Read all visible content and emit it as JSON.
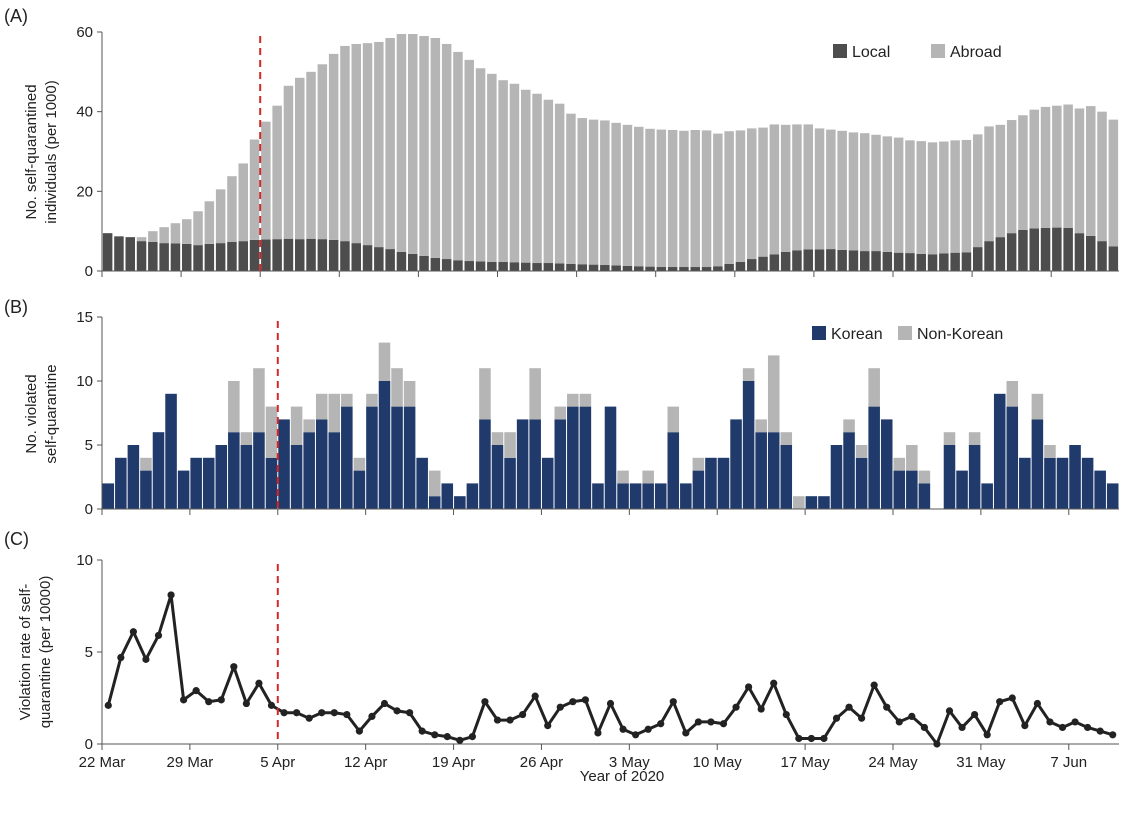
{
  "figure": {
    "xlabel": "Year of 2020",
    "date_labels": [
      "22 Mar",
      "29 Mar",
      "5 Apr",
      "12 Apr",
      "19 Apr",
      "26 Apr",
      "3 May",
      "10 May",
      "17 May",
      "24 May",
      "31 May",
      "7 Jun"
    ],
    "intervention_date": "5 Apr",
    "intervention_color": "#d62728"
  },
  "chart_data": [
    {
      "panel": "(A)",
      "type": "bar",
      "stacked": true,
      "ylabel_line1": "No. self-quarantined",
      "ylabel_line2": "individuals (per 1000)",
      "ylim": [
        0,
        60
      ],
      "yticks": [
        0,
        20,
        40,
        60
      ],
      "legend_placement": "top-right",
      "series": [
        {
          "name": "Local",
          "color": "#4d4d4d",
          "values": [
            9.5,
            8.7,
            8.5,
            7.5,
            7.3,
            7.0,
            6.9,
            6.8,
            6.5,
            6.8,
            7.0,
            7.3,
            7.5,
            7.8,
            7.9,
            8.0,
            8.1,
            8.0,
            8.1,
            8.0,
            7.8,
            7.5,
            7.0,
            6.5,
            6.0,
            5.5,
            4.8,
            4.3,
            3.8,
            3.3,
            3.0,
            2.7,
            2.5,
            2.4,
            2.3,
            2.3,
            2.2,
            2.1,
            2.0,
            2.0,
            1.9,
            1.8,
            1.7,
            1.6,
            1.5,
            1.4,
            1.3,
            1.2,
            1.1,
            1.0,
            1.0,
            1.0,
            1.0,
            1.0,
            1.2,
            1.8,
            2.3,
            3.0,
            3.6,
            4.2,
            4.8,
            5.2,
            5.4,
            5.4,
            5.5,
            5.3,
            5.2,
            5.0,
            5.0,
            4.8,
            4.6,
            4.5,
            4.3,
            4.2,
            4.4,
            4.6,
            4.7,
            6.0,
            7.5,
            8.5,
            9.5,
            10.3,
            10.7,
            10.8,
            10.9,
            10.8,
            9.5,
            8.8,
            7.5,
            6.2
          ]
        },
        {
          "name": "Abroad",
          "color": "#b5b5b5",
          "values": [
            0.0,
            0.0,
            0.0,
            1.0,
            2.7,
            4.0,
            5.1,
            6.2,
            8.5,
            10.7,
            13.5,
            16.5,
            19.5,
            25.2,
            29.6,
            33.5,
            38.4,
            40.5,
            41.9,
            43.9,
            46.7,
            49.0,
            50.0,
            50.7,
            51.5,
            53.0,
            54.7,
            55.2,
            55.2,
            55.2,
            54.0,
            52.3,
            50.5,
            48.5,
            47.2,
            45.6,
            44.8,
            43.4,
            42.5,
            41.0,
            40.1,
            37.7,
            36.7,
            36.4,
            36.3,
            35.8,
            35.4,
            35.0,
            34.6,
            34.5,
            34.4,
            34.2,
            34.4,
            34.3,
            33.3,
            33.3,
            33.0,
            32.8,
            32.4,
            32.6,
            31.9,
            31.6,
            31.4,
            30.4,
            30.0,
            29.9,
            29.6,
            29.6,
            29.2,
            29.0,
            28.9,
            28.3,
            28.3,
            28.1,
            28.1,
            28.2,
            28.2,
            28.3,
            28.8,
            28.2,
            28.4,
            28.8,
            29.8,
            30.4,
            30.6,
            31.0,
            31.3,
            32.6,
            32.5,
            31.8
          ]
        }
      ]
    },
    {
      "panel": "(B)",
      "type": "bar",
      "stacked": true,
      "ylabel_line1": "No. violated",
      "ylabel_line2": "self-quarantine",
      "ylim": [
        0,
        15
      ],
      "yticks": [
        0,
        5,
        10,
        15
      ],
      "legend_placement": "top-right",
      "series": [
        {
          "name": "Korean",
          "color": "#1f3a6b",
          "values": [
            2,
            4,
            5,
            3,
            6,
            9,
            3,
            4,
            4,
            5,
            6,
            5,
            6,
            4,
            7,
            5,
            6,
            7,
            6,
            8,
            3,
            8,
            10,
            8,
            8,
            4,
            1,
            2,
            1,
            2,
            7,
            5,
            4,
            7,
            7,
            4,
            7,
            8,
            8,
            2,
            8,
            2,
            2,
            2,
            2,
            6,
            2,
            3,
            4,
            4,
            7,
            10,
            6,
            6,
            5,
            0,
            1,
            1,
            5,
            6,
            4,
            8,
            7,
            3,
            3,
            2,
            0,
            5,
            3,
            5,
            2,
            9,
            8,
            4,
            7,
            4,
            4,
            5,
            4,
            3,
            2
          ]
        },
        {
          "name": "Non-Korean",
          "color": "#b5b5b5",
          "values": [
            0,
            0,
            0,
            1,
            0,
            0,
            0,
            0,
            0,
            0,
            4,
            1,
            5,
            4,
            0,
            3,
            1,
            2,
            3,
            1,
            1,
            1,
            3,
            3,
            2,
            0,
            2,
            0,
            0,
            0,
            4,
            1,
            2,
            0,
            4,
            0,
            1,
            1,
            1,
            0,
            0,
            1,
            0,
            1,
            0,
            2,
            0,
            1,
            0,
            0,
            0,
            1,
            1,
            6,
            1,
            1,
            0,
            0,
            0,
            1,
            1,
            3,
            0,
            1,
            2,
            1,
            0,
            1,
            0,
            1,
            0,
            0,
            2,
            0,
            2,
            1,
            0,
            0,
            0,
            0,
            0
          ]
        }
      ]
    },
    {
      "panel": "(C)",
      "type": "line",
      "ylabel_line1": "Violation rate of self-",
      "ylabel_line2": "quarantine (per 10000)",
      "ylim": [
        0,
        10
      ],
      "yticks": [
        0,
        5,
        10
      ],
      "series": [
        {
          "color": "#222222",
          "values": [
            2.1,
            4.7,
            6.1,
            4.6,
            5.9,
            8.1,
            2.4,
            2.9,
            2.3,
            2.4,
            4.2,
            2.2,
            3.3,
            2.1,
            1.7,
            1.7,
            1.4,
            1.7,
            1.7,
            1.6,
            0.7,
            1.5,
            2.2,
            1.8,
            1.7,
            0.7,
            0.5,
            0.4,
            0.2,
            0.4,
            2.3,
            1.3,
            1.3,
            1.6,
            2.6,
            1.0,
            2.0,
            2.3,
            2.4,
            0.6,
            2.2,
            0.8,
            0.5,
            0.8,
            1.1,
            2.3,
            0.6,
            1.2,
            1.2,
            1.1,
            2.0,
            3.1,
            1.9,
            3.3,
            1.6,
            0.3,
            0.3,
            0.3,
            1.4,
            2.0,
            1.4,
            3.2,
            2.0,
            1.2,
            1.5,
            0.9,
            0.0,
            1.8,
            0.9,
            1.6,
            0.5,
            2.3,
            2.5,
            1.0,
            2.2,
            1.2,
            0.9,
            1.2,
            0.9,
            0.7,
            0.5
          ]
        }
      ]
    }
  ]
}
